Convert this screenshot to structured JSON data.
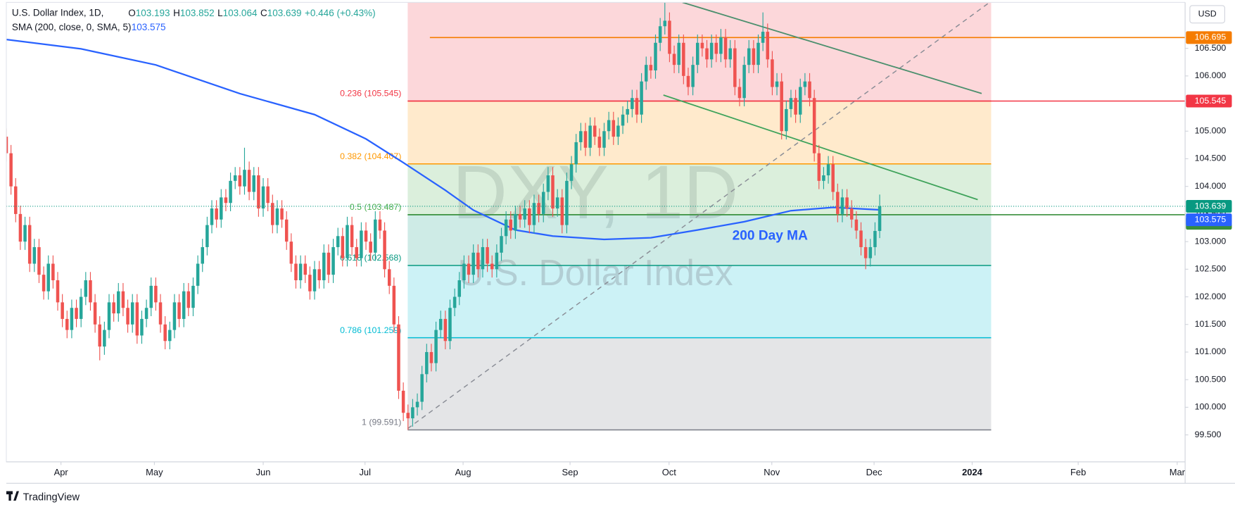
{
  "chart_data": {
    "type": "candlestick",
    "title": "U.S. Dollar Index, 1D,",
    "ohlc_labels": [
      "O",
      "H",
      "L",
      "C"
    ],
    "change": "+0.446 (+0.43%)",
    "currency": "USD",
    "watermark": [
      "DXY, 1D",
      "U.S. Dollar Index"
    ],
    "annotation": "200 Day MA",
    "footer": "TradingView",
    "grid": false,
    "xlim": [
      0,
      252.4
    ],
    "ylim": [
      99.012,
      107.375
    ],
    "xticks": [
      {
        "value": 11.7,
        "label": "Apr"
      },
      {
        "value": 31.7,
        "label": "May"
      },
      {
        "value": 55,
        "label": "Jun"
      },
      {
        "value": 76.8,
        "label": "Jul"
      },
      {
        "value": 97.8,
        "label": "Aug"
      },
      {
        "value": 120.7,
        "label": "Sep"
      },
      {
        "value": 141.9,
        "label": "Oct"
      },
      {
        "value": 163.9,
        "label": "Nov"
      },
      {
        "value": 185.8,
        "label": "Dec"
      },
      {
        "value": 206.8,
        "label": "2024"
      },
      {
        "value": 229.5,
        "label": "Feb"
      },
      {
        "value": 250.7,
        "label": "Mar"
      }
    ],
    "yticks": [
      {
        "value": 99.5,
        "label": "99.500"
      },
      {
        "value": 100,
        "label": "100.000"
      },
      {
        "value": 100.5,
        "label": "100.500"
      },
      {
        "value": 101,
        "label": "101.000"
      },
      {
        "value": 101.5,
        "label": "101.500"
      },
      {
        "value": 102,
        "label": "102.000"
      },
      {
        "value": 102.5,
        "label": "102.500"
      },
      {
        "value": 103,
        "label": "103.000"
      },
      {
        "value": 103.5,
        "label": "103.500"
      },
      {
        "value": 104,
        "label": "104.000"
      },
      {
        "value": 104.5,
        "label": "104.500"
      },
      {
        "value": 105,
        "label": "105.000"
      },
      {
        "value": 105.5,
        "label": "105.500"
      },
      {
        "value": 106,
        "label": "106.000"
      },
      {
        "value": 106.5,
        "label": "106.500"
      }
    ],
    "series": [
      {
        "name": "U.S. Dollar Index",
        "up_color": "#26a69a",
        "down_color": "#ef5350",
        "open": [
          104.9,
          104.6,
          104.0,
          103.5,
          103.0,
          103.3,
          102.6,
          102.9,
          102.4,
          102.1,
          102.6,
          102.3,
          101.9,
          101.6,
          101.4,
          101.8,
          101.6,
          102.0,
          102.3,
          101.9,
          101.5,
          101.1,
          101.4,
          101.9,
          101.7,
          102.1,
          101.8,
          101.5,
          101.9,
          101.3,
          101.6,
          101.8,
          102.2,
          101.9,
          101.5,
          101.2,
          101.4,
          101.9,
          101.6,
          102.1,
          101.8,
          102.2,
          102.6,
          102.9,
          103.3,
          103.6,
          103.4,
          103.8,
          103.7,
          104.1,
          104.2,
          104.0,
          104.3,
          103.9,
          104.2,
          103.6,
          104.0,
          103.7,
          103.3,
          103.6,
          103.4,
          103.0,
          102.6,
          102.3,
          102.6,
          102.4,
          102.1,
          102.5,
          102.3,
          102.8,
          102.4,
          102.9,
          103.1,
          102.7,
          103.3,
          102.9,
          102.7,
          103.2,
          103.0,
          102.8,
          103.4,
          103.2,
          102.5,
          102.2,
          101.5,
          100.3,
          99.9,
          99.8,
          100.0,
          100.1,
          100.6,
          101.0,
          100.8,
          101.4,
          101.6,
          101.2,
          101.8,
          102.0,
          102.3,
          102.6,
          102.4,
          102.8,
          102.5,
          102.9,
          102.6,
          102.5,
          102.8,
          103.1,
          103.4,
          103.2,
          103.5,
          103.4,
          103.6,
          103.3,
          103.7,
          103.5,
          103.9,
          104.2,
          103.6,
          103.8,
          103.3,
          104.1,
          104.4,
          104.8,
          105.0,
          104.7,
          105.1,
          104.9,
          104.7,
          105.0,
          105.2,
          104.9,
          105.1,
          105.3,
          105.4,
          105.6,
          105.3,
          105.9,
          106.2,
          106.1,
          106.6,
          106.9,
          107.0,
          106.4,
          106.2,
          106.6,
          106.0,
          105.8,
          106.2,
          106.6,
          106.5,
          106.3,
          106.6,
          106.4,
          106.7,
          106.3,
          106.5,
          105.8,
          105.6,
          106.2,
          106.5,
          106.2,
          106.6,
          106.8,
          106.3,
          105.8,
          105.9,
          105.0,
          105.4,
          105.6,
          105.3,
          105.8,
          105.9,
          105.6,
          104.6,
          104.1,
          104.2,
          104.4,
          103.9,
          103.5,
          103.8,
          103.6,
          103.4,
          103.2,
          102.9,
          102.7,
          102.9,
          103.193
        ],
        "high": [
          105.05,
          104.75,
          104.15,
          103.65,
          103.45,
          103.45,
          103.05,
          103.05,
          102.55,
          102.75,
          102.75,
          102.45,
          102.05,
          101.75,
          101.95,
          101.95,
          102.15,
          102.45,
          102.45,
          102.05,
          101.65,
          101.55,
          102.05,
          102.05,
          102.25,
          102.25,
          101.95,
          102.05,
          102.05,
          101.75,
          101.95,
          102.35,
          102.35,
          102.05,
          101.65,
          101.55,
          102.05,
          102.05,
          102.25,
          102.25,
          102.35,
          102.75,
          103.05,
          103.45,
          103.75,
          103.75,
          103.95,
          103.95,
          104.25,
          104.35,
          104.35,
          104.7,
          104.45,
          104.35,
          104.35,
          104.15,
          104.15,
          103.85,
          103.75,
          103.75,
          103.55,
          103.15,
          102.75,
          102.75,
          102.75,
          102.55,
          102.65,
          102.65,
          102.95,
          102.95,
          103.05,
          103.25,
          103.25,
          103.45,
          103.45,
          103.05,
          103.35,
          103.35,
          103.15,
          103.55,
          103.55,
          103.35,
          102.65,
          102.35,
          101.65,
          100.45,
          100.05,
          100.15,
          100.25,
          100.75,
          101.15,
          101.15,
          101.55,
          101.75,
          101.75,
          101.95,
          102.15,
          102.45,
          102.75,
          102.75,
          102.95,
          102.95,
          103.05,
          103.05,
          102.75,
          102.95,
          103.25,
          103.55,
          103.55,
          103.65,
          103.65,
          103.75,
          103.75,
          103.85,
          103.85,
          104.05,
          104.35,
          104.35,
          103.95,
          103.95,
          104.25,
          104.55,
          104.95,
          105.15,
          105.15,
          105.25,
          105.25,
          105.05,
          105.15,
          105.35,
          105.35,
          105.25,
          105.45,
          105.55,
          105.75,
          105.75,
          106.05,
          106.35,
          106.35,
          106.75,
          107.05,
          107.35,
          107.15,
          106.55,
          106.75,
          106.75,
          106.15,
          106.35,
          106.75,
          106.75,
          106.65,
          106.75,
          106.75,
          106.85,
          106.85,
          106.65,
          106.65,
          105.95,
          106.35,
          106.65,
          106.65,
          106.75,
          107.15,
          106.95,
          106.45,
          106.05,
          106.05,
          105.55,
          105.75,
          105.75,
          105.95,
          106.05,
          106.05,
          105.75,
          104.75,
          104.35,
          104.55,
          104.55,
          104.05,
          103.95,
          103.95,
          103.75,
          103.55,
          103.35,
          103.05,
          103.05,
          103.35,
          103.852
        ],
        "low": [
          104.45,
          103.85,
          103.35,
          102.85,
          102.85,
          102.45,
          102.45,
          102.25,
          101.95,
          101.95,
          102.15,
          101.75,
          101.45,
          101.25,
          101.25,
          101.45,
          101.45,
          101.85,
          101.75,
          101.35,
          100.85,
          100.95,
          101.25,
          101.55,
          101.55,
          101.65,
          101.35,
          101.35,
          101.15,
          101.15,
          101.45,
          101.65,
          101.75,
          101.35,
          101.05,
          101.05,
          101.25,
          101.45,
          101.45,
          101.65,
          101.65,
          102.05,
          102.45,
          102.75,
          103.15,
          103.25,
          103.25,
          103.55,
          103.55,
          103.95,
          103.85,
          103.85,
          103.75,
          103.75,
          103.45,
          103.45,
          103.55,
          103.15,
          103.15,
          103.25,
          102.85,
          102.45,
          102.15,
          102.15,
          102.25,
          101.95,
          101.95,
          102.15,
          102.15,
          102.25,
          102.25,
          102.75,
          102.55,
          102.55,
          102.75,
          102.55,
          102.55,
          102.85,
          102.65,
          102.65,
          103.05,
          102.35,
          102.05,
          101.35,
          100.15,
          99.75,
          99.591,
          99.65,
          99.85,
          99.95,
          100.45,
          100.65,
          100.65,
          101.25,
          101.05,
          101.05,
          101.65,
          101.85,
          102.15,
          102.25,
          102.25,
          102.35,
          102.35,
          102.45,
          102.35,
          102.35,
          102.65,
          102.95,
          103.05,
          103.05,
          103.25,
          103.25,
          103.15,
          103.15,
          103.35,
          103.35,
          103.75,
          103.45,
          103.45,
          103.15,
          103.15,
          103.95,
          104.25,
          104.65,
          104.55,
          104.55,
          104.75,
          104.55,
          104.55,
          104.85,
          104.75,
          104.75,
          104.95,
          105.15,
          105.25,
          105.15,
          105.15,
          105.75,
          105.95,
          105.95,
          106.45,
          106.75,
          106.25,
          106.05,
          106.05,
          105.85,
          105.65,
          105.65,
          106.05,
          106.35,
          106.15,
          106.15,
          106.25,
          106.25,
          106.15,
          106.15,
          105.65,
          105.45,
          105.45,
          106.05,
          106.05,
          106.05,
          106.45,
          106.15,
          105.65,
          105.65,
          104.85,
          104.85,
          105.25,
          105.15,
          105.15,
          105.65,
          105.45,
          104.45,
          103.95,
          103.95,
          104.05,
          103.75,
          103.35,
          103.35,
          103.45,
          103.25,
          103.05,
          102.75,
          102.5,
          102.55,
          102.75,
          103.064
        ],
        "close": [
          104.6,
          104.0,
          103.5,
          103.0,
          103.3,
          102.6,
          102.9,
          102.4,
          102.1,
          102.6,
          102.3,
          101.9,
          101.6,
          101.4,
          101.8,
          101.6,
          102.0,
          102.3,
          101.9,
          101.5,
          101.1,
          101.4,
          101.9,
          101.7,
          102.1,
          101.8,
          101.5,
          101.9,
          101.3,
          101.6,
          101.8,
          102.2,
          101.9,
          101.5,
          101.2,
          101.4,
          101.9,
          101.6,
          102.1,
          101.8,
          102.2,
          102.6,
          102.9,
          103.3,
          103.6,
          103.4,
          103.8,
          103.7,
          104.1,
          104.2,
          104.0,
          104.3,
          103.9,
          104.2,
          103.6,
          104.0,
          103.7,
          103.3,
          103.6,
          103.4,
          103.0,
          102.6,
          102.3,
          102.6,
          102.4,
          102.1,
          102.5,
          102.3,
          102.8,
          102.4,
          102.9,
          103.1,
          102.7,
          103.3,
          102.9,
          102.7,
          103.2,
          103.0,
          102.8,
          103.4,
          103.2,
          102.5,
          102.2,
          101.5,
          100.3,
          99.9,
          99.8,
          100.0,
          100.1,
          100.6,
          101.0,
          100.8,
          101.4,
          101.6,
          101.2,
          101.8,
          102.0,
          102.3,
          102.6,
          102.4,
          102.8,
          102.5,
          102.9,
          102.6,
          102.5,
          102.8,
          103.1,
          103.4,
          103.2,
          103.5,
          103.4,
          103.6,
          103.3,
          103.7,
          103.5,
          103.9,
          104.2,
          103.6,
          103.8,
          103.3,
          104.1,
          104.4,
          104.8,
          105.0,
          104.7,
          105.1,
          104.9,
          104.7,
          105.0,
          105.2,
          104.9,
          105.1,
          105.3,
          105.4,
          105.6,
          105.3,
          105.9,
          106.2,
          106.1,
          106.6,
          106.9,
          107.0,
          106.4,
          106.2,
          106.6,
          106.0,
          105.8,
          106.2,
          106.6,
          106.5,
          106.3,
          106.6,
          106.4,
          106.7,
          106.3,
          106.5,
          105.8,
          105.6,
          106.2,
          106.5,
          106.2,
          106.6,
          106.8,
          106.3,
          105.8,
          105.9,
          105.0,
          105.4,
          105.6,
          105.3,
          105.8,
          105.9,
          105.6,
          104.6,
          104.1,
          104.2,
          104.4,
          103.9,
          103.5,
          103.8,
          103.6,
          103.4,
          103.2,
          102.9,
          102.7,
          102.9,
          103.193,
          103.639
        ]
      }
    ],
    "sma": {
      "name": "SMA (200, close, 0, SMA, 5)",
      "color": "#2962ff",
      "x": [
        0,
        16,
        32,
        50,
        66,
        77,
        85,
        94,
        100,
        109,
        117,
        128,
        138,
        148,
        158,
        168,
        177,
        187
      ],
      "values": [
        106.66,
        106.49,
        106.2,
        105.68,
        105.3,
        104.86,
        104.43,
        103.93,
        103.57,
        103.21,
        103.1,
        103.04,
        103.07,
        103.21,
        103.36,
        103.56,
        103.62,
        103.575
      ]
    },
    "fib": [
      {
        "label": "0.236 (105.545)",
        "value": 105.545,
        "color": "#f23645"
      },
      {
        "label": "0.382 (104.407)",
        "value": 104.407,
        "color": "#ff9800"
      },
      {
        "label": "0.5 (103.487)",
        "value": 103.487,
        "color": "#4caf50"
      },
      {
        "label": "0.618 (102.568)",
        "value": 102.568,
        "color": "#089981"
      },
      {
        "label": "0.786 (101.259)",
        "value": 101.259,
        "color": "#00bcd4"
      },
      {
        "label": "1 (99.591)",
        "value": 99.591,
        "color": "#787b86"
      }
    ],
    "hlines": [
      {
        "value": 106.695,
        "color": "#f57c00"
      },
      {
        "value": 105.545,
        "color": "#f23645"
      },
      {
        "value": 103.487,
        "color": "#388e3c"
      }
    ],
    "last_price_color": "#089981"
  }
}
